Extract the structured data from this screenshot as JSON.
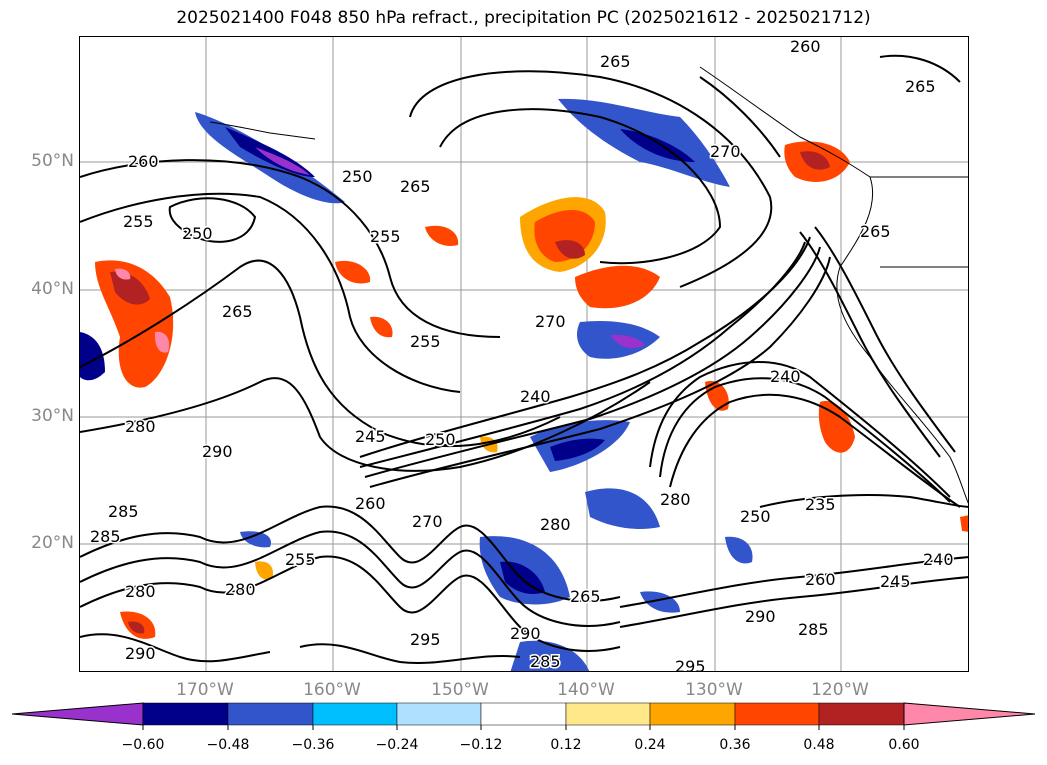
{
  "title": "2025021400 F048 850 hPa refract., precipitation PC (2025021612 - 2025021712)",
  "map": {
    "lat_labels": [
      "50°N",
      "40°N",
      "30°N",
      "20°N"
    ],
    "lon_labels": [
      "170°W",
      "160°W",
      "150°W",
      "140°W",
      "130°W",
      "120°W"
    ],
    "contour_labels": [
      "260",
      "250",
      "265",
      "255",
      "250",
      "255",
      "265",
      "270",
      "255",
      "240",
      "245",
      "250",
      "280",
      "290",
      "285",
      "285",
      "260",
      "270",
      "255",
      "280",
      "280",
      "280",
      "265",
      "290",
      "295",
      "290",
      "285",
      "280",
      "250",
      "235",
      "240",
      "245",
      "260",
      "290",
      "285",
      "295",
      "265",
      "270",
      "265",
      "240",
      "265",
      "260"
    ],
    "colors": {
      "neg_extreme": "#9932cc",
      "neg_060": "#00008b",
      "neg_048": "#3355cc",
      "neg_036": "#00bfff",
      "neg_024": "#b0e0ff",
      "neutral": "#ffffff",
      "pos_012": "#ffe88a",
      "pos_024": "#ffa500",
      "pos_036": "#ff4500",
      "pos_048": "#b22222",
      "pos_extreme": "#ff88aa"
    }
  },
  "colorbar": {
    "ticks": [
      "−0.60",
      "−0.48",
      "−0.36",
      "−0.24",
      "−0.12",
      "0.12",
      "0.24",
      "0.36",
      "0.48",
      "0.60"
    ],
    "bins": [
      "#9932cc",
      "#00008b",
      "#3355cc",
      "#00bfff",
      "#b0e0ff",
      "#ffffff",
      "#ffe88a",
      "#ffa500",
      "#ff4500",
      "#b22222",
      "#ff88aa"
    ]
  }
}
